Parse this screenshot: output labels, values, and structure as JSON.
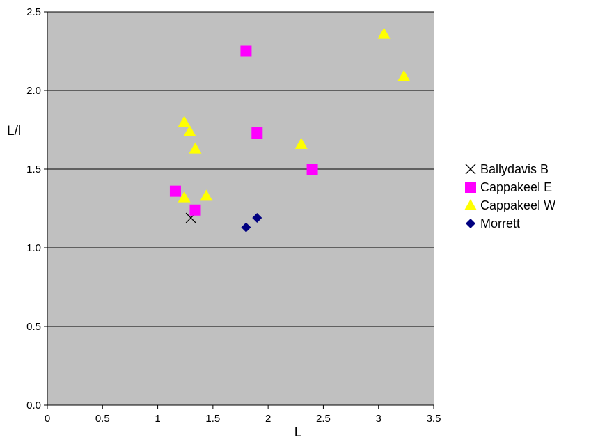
{
  "chart_data": {
    "type": "scatter",
    "title": "",
    "xlabel": "L",
    "ylabel": "L/l",
    "xlim": [
      0,
      3.5
    ],
    "ylim": [
      0,
      2.5
    ],
    "x_ticks": [
      "0",
      "0.5",
      "1",
      "1.5",
      "2",
      "2.5",
      "3",
      "3.5"
    ],
    "y_ticks": [
      "0.0",
      "0.5",
      "1.0",
      "1.5",
      "2.0",
      "2.5"
    ],
    "grid": "horizontal",
    "legend_position": "right",
    "plot_background": "#c0c0c0",
    "series": [
      {
        "name": "Ballydavis B",
        "marker": "x",
        "color": "#000000",
        "points": [
          {
            "x": 1.3,
            "y": 1.19
          }
        ]
      },
      {
        "name": "Cappakeel E",
        "marker": "square",
        "color": "#ff00ff",
        "points": [
          {
            "x": 1.8,
            "y": 2.25
          },
          {
            "x": 1.9,
            "y": 1.73
          },
          {
            "x": 2.4,
            "y": 1.5
          },
          {
            "x": 1.16,
            "y": 1.36
          },
          {
            "x": 1.34,
            "y": 1.24
          }
        ]
      },
      {
        "name": "Cappakeel W",
        "marker": "triangle",
        "color": "#ffff00",
        "points": [
          {
            "x": 3.05,
            "y": 2.36
          },
          {
            "x": 3.23,
            "y": 2.09
          },
          {
            "x": 1.24,
            "y": 1.8
          },
          {
            "x": 1.29,
            "y": 1.74
          },
          {
            "x": 1.34,
            "y": 1.63
          },
          {
            "x": 2.3,
            "y": 1.66
          },
          {
            "x": 1.24,
            "y": 1.32
          },
          {
            "x": 1.44,
            "y": 1.33
          }
        ]
      },
      {
        "name": "Morrett",
        "marker": "diamond",
        "color": "#000080",
        "points": [
          {
            "x": 1.8,
            "y": 1.13
          },
          {
            "x": 1.9,
            "y": 1.19
          }
        ]
      }
    ]
  }
}
